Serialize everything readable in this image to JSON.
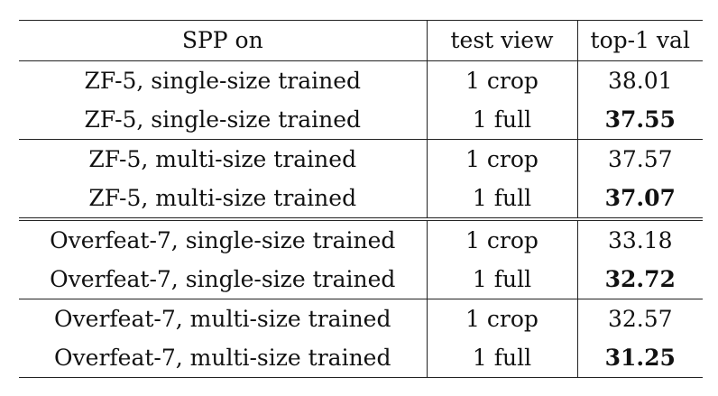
{
  "table": {
    "headers": [
      "SPP on",
      "test view",
      "top-1 val"
    ],
    "rows": [
      {
        "method": "ZF-5, single-size trained",
        "view": "1 crop",
        "value": "38.01",
        "bold": false
      },
      {
        "method": "ZF-5, single-size trained",
        "view": "1 full",
        "value": "37.55",
        "bold": true
      },
      {
        "method": "ZF-5, multi-size trained",
        "view": "1 crop",
        "value": "37.57",
        "bold": false
      },
      {
        "method": "ZF-5, multi-size trained",
        "view": "1 full",
        "value": "37.07",
        "bold": true
      },
      {
        "method": "Overfeat-7, single-size trained",
        "view": "1 crop",
        "value": "33.18",
        "bold": false
      },
      {
        "method": "Overfeat-7, single-size trained",
        "view": "1 full",
        "value": "32.72",
        "bold": true
      },
      {
        "method": "Overfeat-7, multi-size trained",
        "view": "1 crop",
        "value": "32.57",
        "bold": false
      },
      {
        "method": "Overfeat-7, multi-size trained",
        "view": "1 full",
        "value": "31.25",
        "bold": true
      }
    ]
  }
}
